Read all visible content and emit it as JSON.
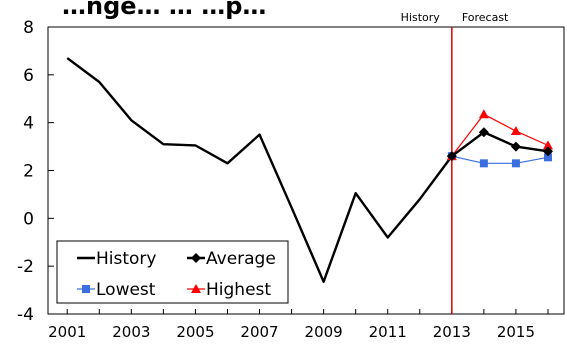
{
  "chart_data": {
    "type": "line",
    "title": "…nge… … …p…",
    "xlabel": "",
    "ylabel": "",
    "xlim": [
      2000.4,
      2016.5
    ],
    "ylim": [
      -4,
      8
    ],
    "x_ticks": [
      2001,
      2003,
      2005,
      2007,
      2009,
      2011,
      2013,
      2015
    ],
    "y_ticks": [
      -4,
      -2,
      0,
      2,
      4,
      6,
      8
    ],
    "grid": false,
    "legend_position": "bottom-left",
    "divider": {
      "x": 2013,
      "left_label": "History",
      "right_label": "Forecast",
      "color": "#e00000"
    },
    "series": [
      {
        "name": "History",
        "color": "#000000",
        "marker": "none",
        "x": [
          2001,
          2002,
          2003,
          2004,
          2005,
          2006,
          2007,
          2008,
          2009,
          2010,
          2011,
          2012,
          2013
        ],
        "values": [
          6.7,
          5.7,
          4.1,
          3.1,
          3.05,
          2.3,
          3.5,
          0.45,
          -2.65,
          1.05,
          -0.8,
          0.8,
          2.6
        ]
      },
      {
        "name": "Average",
        "color": "#000000",
        "marker": "diamond",
        "x": [
          2013,
          2014,
          2015,
          2016
        ],
        "values": [
          2.6,
          3.6,
          3.0,
          2.8
        ]
      },
      {
        "name": "Lowest",
        "color": "#3b6fe0",
        "marker": "square",
        "x": [
          2013,
          2014,
          2015,
          2016
        ],
        "values": [
          2.6,
          2.3,
          2.3,
          2.55
        ]
      },
      {
        "name": "Highest",
        "color": "#ff0000",
        "marker": "triangle",
        "x": [
          2013,
          2014,
          2015,
          2016
        ],
        "values": [
          2.6,
          4.35,
          3.65,
          3.05
        ]
      }
    ]
  }
}
